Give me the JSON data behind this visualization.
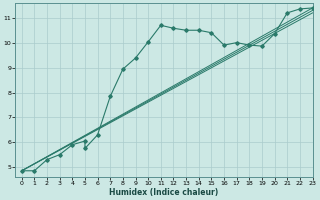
{
  "title": "",
  "xlabel": "Humidex (Indice chaleur)",
  "ylabel": "",
  "bg_color": "#cce8e4",
  "grid_color": "#aacccc",
  "line_color": "#2a7a6a",
  "xlim": [
    -0.5,
    23
  ],
  "ylim": [
    4.6,
    11.6
  ],
  "xticks": [
    0,
    1,
    2,
    3,
    4,
    5,
    6,
    7,
    8,
    9,
    10,
    11,
    12,
    13,
    14,
    15,
    16,
    17,
    18,
    19,
    20,
    21,
    22,
    23
  ],
  "yticks": [
    5,
    6,
    7,
    8,
    9,
    10,
    11
  ],
  "series1_x": [
    0,
    1,
    2,
    3,
    4,
    5,
    5,
    6,
    7,
    8,
    9,
    10,
    11,
    12,
    13,
    14,
    15,
    16,
    17,
    18,
    19,
    20,
    21,
    22,
    23
  ],
  "series1_y": [
    4.85,
    4.85,
    5.3,
    5.5,
    5.9,
    6.05,
    5.75,
    6.3,
    7.85,
    8.95,
    9.4,
    10.05,
    10.72,
    10.6,
    10.52,
    10.52,
    10.42,
    9.92,
    10.02,
    9.92,
    9.88,
    10.38,
    11.22,
    11.38,
    11.42
  ],
  "series2_x": [
    0,
    23
  ],
  "series2_y": [
    4.85,
    11.42
  ],
  "series3_x": [
    0,
    23
  ],
  "series3_y": [
    4.85,
    11.32
  ],
  "series4_x": [
    0,
    23
  ],
  "series4_y": [
    4.85,
    11.22
  ]
}
